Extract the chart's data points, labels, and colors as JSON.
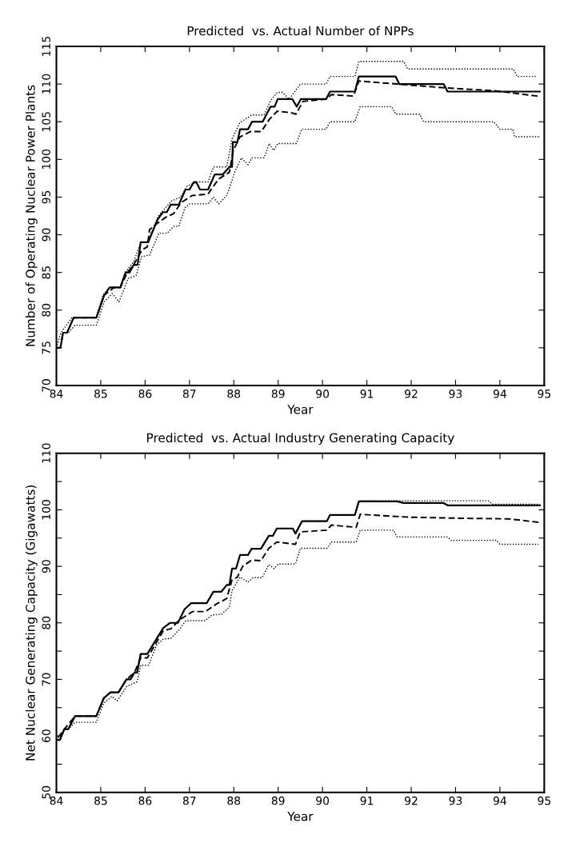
{
  "chart_data": [
    {
      "type": "line",
      "title": "Predicted  vs. Actual Number of NPPs",
      "xlabel": "Year",
      "ylabel": "Number of Operating Nuclear Power Plants",
      "xlim": [
        84,
        95
      ],
      "xticks": [
        84,
        85,
        86,
        87,
        88,
        89,
        90,
        91,
        92,
        93,
        94,
        95
      ],
      "ylim": [
        70,
        115
      ],
      "yticks": [
        70,
        75,
        80,
        85,
        90,
        95,
        100,
        105,
        110,
        115
      ],
      "marker": "none",
      "series": [
        {
          "color": "#000000",
          "line_style": "solid",
          "x": [
            84,
            84.09,
            84.15,
            84.24,
            84.39,
            84.9,
            85.08,
            85.2,
            85.44,
            85.56,
            85.65,
            85.74,
            85.83,
            85.9,
            86.07,
            86.28,
            86.4,
            86.49,
            86.58,
            86.76,
            86.91,
            87.0,
            87.1,
            87.15,
            87.24,
            87.42,
            87.57,
            87.75,
            87.9,
            87.96,
            87.98,
            88.08,
            88.14,
            88.32,
            88.41,
            88.65,
            88.83,
            88.92,
            88.99,
            89.32,
            89.42,
            89.51,
            90.08,
            90.17,
            90.73,
            90.82,
            91.65,
            91.73,
            92.73,
            92.82,
            94.9
          ],
          "values": [
            75,
            75,
            77,
            77,
            79,
            79,
            82,
            83,
            83,
            85,
            85,
            86,
            86,
            89,
            89,
            92,
            93,
            93,
            94,
            94,
            96,
            96,
            97,
            97,
            96,
            96,
            98,
            98,
            99,
            99,
            102.3,
            102.3,
            104,
            104,
            105,
            105,
            107,
            107,
            108,
            108,
            107,
            108,
            108,
            109,
            109,
            111,
            111,
            110,
            110,
            109,
            109
          ]
        },
        {
          "color": "#000000",
          "line_style": "dashed",
          "x": [
            84,
            84.09,
            84.15,
            84.24,
            84.39,
            84.9,
            85.08,
            85.3,
            85.44,
            85.6,
            85.74,
            85.93,
            86.05,
            86.1,
            86.34,
            86.46,
            86.64,
            86.82,
            87.06,
            87.42,
            87.5,
            87.66,
            87.9,
            87.99,
            88.14,
            88.38,
            88.62,
            88.8,
            88.98,
            89.29,
            89.4,
            89.56,
            90.08,
            90.2,
            90.7,
            90.82,
            91.68,
            92.76,
            93.89,
            94.85
          ],
          "values": [
            75,
            75,
            77,
            77,
            79,
            79,
            82,
            83,
            83,
            85,
            86,
            88,
            88.4,
            90.7,
            91.8,
            92.3,
            92.8,
            94.3,
            95.2,
            95.4,
            96.1,
            97.4,
            98.3,
            101.2,
            103,
            103.7,
            103.7,
            105.3,
            106.4,
            106.2,
            106,
            107.7,
            108,
            108.6,
            108.4,
            110.4,
            110,
            109.5,
            109.1,
            108.4
          ]
        },
        {
          "color": "#000000",
          "line_style": "dotted",
          "x": [
            84,
            84.1,
            84.35,
            84.9,
            85.05,
            85.2,
            85.45,
            85.55,
            85.75,
            85.9,
            86.05,
            86.3,
            86.45,
            86.6,
            86.8,
            86.95,
            87.18,
            87.42,
            87.54,
            87.84,
            87.96,
            88.14,
            88.41,
            88.68,
            88.83,
            88.98,
            89.1,
            89.25,
            89.5,
            90.08,
            90.17,
            90.73,
            90.82,
            91.83,
            91.92,
            94.3,
            94.39,
            94.84
          ],
          "values": [
            75,
            77,
            79,
            79,
            82,
            83,
            83,
            85,
            86.5,
            89,
            89,
            92.5,
            93.5,
            94.5,
            95,
            96.5,
            97,
            97,
            99,
            99,
            102.7,
            104.9,
            105.9,
            105.9,
            107.8,
            108.9,
            108.9,
            108,
            110,
            110,
            111,
            111,
            113,
            113,
            112,
            112,
            111,
            111
          ]
        },
        {
          "color": "#000000",
          "line_style": "dotted",
          "x": [
            84,
            84.09,
            84.15,
            84.27,
            84.42,
            84.9,
            85.08,
            85.26,
            85.41,
            85.62,
            85.8,
            85.92,
            86.1,
            86.31,
            86.5,
            86.64,
            86.76,
            86.9,
            87.0,
            87.42,
            87.54,
            87.66,
            87.84,
            87.96,
            88.02,
            88.17,
            88.32,
            88.41,
            88.68,
            88.8,
            88.9,
            88.99,
            89.41,
            89.53,
            90.08,
            90.17,
            90.73,
            90.85,
            91.56,
            91.65,
            92.19,
            92.28,
            93.86,
            94.0,
            94.29,
            94.33,
            94.9
          ],
          "values": [
            75,
            75,
            77,
            77,
            78,
            78,
            81.1,
            82.2,
            81.1,
            84.2,
            84.6,
            87.1,
            87.3,
            90.2,
            90.2,
            91.1,
            91.1,
            93.6,
            94.1,
            94.1,
            95,
            94.1,
            95.2,
            97.2,
            98.3,
            100.2,
            99.3,
            100.2,
            100.2,
            102.1,
            101.2,
            102.1,
            102.1,
            104,
            104,
            105,
            105,
            107,
            107,
            106,
            106,
            105,
            105,
            104,
            104,
            103,
            103
          ]
        }
      ]
    },
    {
      "type": "line",
      "title": "Predicted  vs. Actual Industry Generating Capacity",
      "xlabel": "Year",
      "ylabel": "Net Nuclear Generating Capacity (Gigawatts)",
      "xlim": [
        84,
        95
      ],
      "xticks": [
        84,
        85,
        86,
        87,
        88,
        89,
        90,
        91,
        92,
        93,
        94,
        95
      ],
      "ylim": [
        50,
        110
      ],
      "yticks": [
        50,
        {
          "value": 55,
          "label": null
        },
        60,
        {
          "value": 65,
          "label": null
        },
        70,
        {
          "value": 75,
          "label": null
        },
        80,
        {
          "value": 85,
          "label": null
        },
        90,
        {
          "value": 95,
          "label": null
        },
        100,
        {
          "value": 105,
          "label": null
        },
        110
      ],
      "marker": "none",
      "series": [
        {
          "color": "#000000",
          "line_style": "solid",
          "x": [
            84,
            84.08,
            84.18,
            84.27,
            84.42,
            84.9,
            85.07,
            85.22,
            85.4,
            85.58,
            85.67,
            85.76,
            85.82,
            85.9,
            86.05,
            86.41,
            86.56,
            86.74,
            86.89,
            87.04,
            87.39,
            87.54,
            87.72,
            87.84,
            87.9,
            87.96,
            88.05,
            88.14,
            88.32,
            88.4,
            88.61,
            88.79,
            88.88,
            88.97,
            89.33,
            89.39,
            89.54,
            90.1,
            90.17,
            90.73,
            90.82,
            91.68,
            91.83,
            92.73,
            92.82,
            94.9
          ],
          "values": [
            59.3,
            59.3,
            61.2,
            61.2,
            63.5,
            63.5,
            66.7,
            67.7,
            67.7,
            70,
            70,
            71.2,
            71.2,
            74.5,
            74.5,
            79.1,
            80,
            80,
            82.4,
            83.5,
            83.5,
            85.5,
            85.5,
            86.7,
            86.7,
            89.6,
            89.6,
            92,
            92,
            93.1,
            93.1,
            95.4,
            95.4,
            96.7,
            96.7,
            95.8,
            98,
            98,
            99.1,
            99.1,
            101.5,
            101.5,
            101.2,
            101.2,
            100.8,
            100.8
          ]
        },
        {
          "color": "#000000",
          "line_style": "dashed",
          "x": [
            84,
            84.18,
            84.42,
            84.9,
            85.07,
            85.22,
            85.4,
            85.58,
            85.76,
            85.9,
            86.05,
            86.41,
            86.59,
            86.77,
            86.89,
            87.07,
            87.36,
            87.6,
            87.84,
            87.96,
            88.08,
            88.2,
            88.4,
            88.61,
            88.79,
            88.97,
            89.39,
            89.5,
            90.1,
            90.2,
            90.76,
            90.85,
            91.95,
            93.14,
            94.2,
            94.87
          ],
          "values": [
            59.3,
            61.2,
            63.5,
            63.5,
            66.7,
            67.7,
            67.7,
            70,
            71.2,
            73.8,
            73.8,
            78.6,
            79,
            80.5,
            81.1,
            82,
            82,
            83.3,
            84.3,
            87.6,
            88.1,
            90,
            91.1,
            91,
            93.2,
            94.3,
            93.9,
            96.1,
            96.4,
            97.3,
            96.9,
            99.2,
            98.7,
            98.5,
            98.4,
            97.8
          ]
        },
        {
          "color": "#000000",
          "line_style": "dotted",
          "x": [
            84,
            84.08,
            84.18,
            84.27,
            84.42,
            84.9,
            85.07,
            85.22,
            85.4,
            85.58,
            85.67,
            85.76,
            85.82,
            85.9,
            86.05,
            86.41,
            86.56,
            86.74,
            86.89,
            87.04,
            87.39,
            87.54,
            87.72,
            87.84,
            87.9,
            87.96,
            88.05,
            88.14,
            88.32,
            88.4,
            88.61,
            88.79,
            88.88,
            88.97,
            89.33,
            89.39,
            89.54,
            90.1,
            90.17,
            90.73,
            90.82,
            93.74,
            93.83,
            94.9
          ],
          "values": [
            59.3,
            59.3,
            61.2,
            61.2,
            63.5,
            63.5,
            66.7,
            67.7,
            67.7,
            70,
            70,
            71.2,
            71.2,
            74.5,
            74.5,
            79.1,
            80,
            80,
            82.4,
            83.5,
            83.5,
            85.5,
            85.5,
            86.7,
            86.7,
            89.6,
            89.6,
            92,
            92,
            93.1,
            93.1,
            95.4,
            95.4,
            96.7,
            96.7,
            95.8,
            98,
            98,
            99.1,
            99.1,
            101.6,
            101.6,
            101,
            101
          ]
        },
        {
          "color": "#000000",
          "line_style": "dotted",
          "x": [
            84,
            84.18,
            84.27,
            84.42,
            84.9,
            85.07,
            85.25,
            85.37,
            85.58,
            85.82,
            85.9,
            86.08,
            86.26,
            86.41,
            86.59,
            86.77,
            86.92,
            87.36,
            87.51,
            87.72,
            87.9,
            87.96,
            88.14,
            88.32,
            88.43,
            88.64,
            88.79,
            88.91,
            89.0,
            89.39,
            89.5,
            90.1,
            90.2,
            90.76,
            90.85,
            91.6,
            91.68,
            92.82,
            92.9,
            93.92,
            94.0,
            94.87
          ],
          "values": [
            59.3,
            61.2,
            61.2,
            62.4,
            62.4,
            65.8,
            67,
            66.2,
            68.7,
            69.6,
            72.5,
            72.5,
            76.1,
            77.1,
            77.3,
            78.8,
            80.4,
            80.4,
            81.4,
            81.5,
            82.8,
            85.7,
            88.1,
            87.2,
            88,
            88,
            90.3,
            89.6,
            90.4,
            90.4,
            93.2,
            93.2,
            94.3,
            94.3,
            96.4,
            96.4,
            95.2,
            95.2,
            94.6,
            94.6,
            93.9,
            93.9
          ]
        }
      ]
    }
  ]
}
